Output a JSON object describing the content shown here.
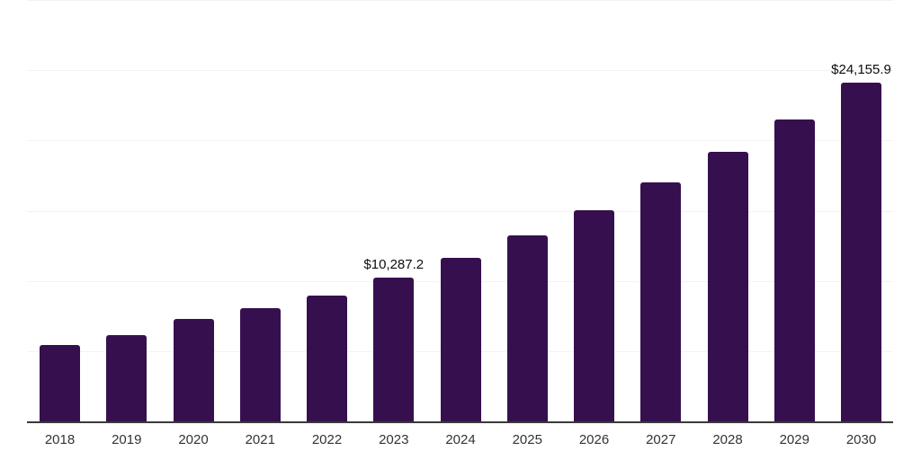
{
  "chart_data": {
    "type": "bar",
    "title": "",
    "xlabel": "",
    "ylabel": "",
    "categories": [
      "2018",
      "2019",
      "2020",
      "2021",
      "2022",
      "2023",
      "2024",
      "2025",
      "2026",
      "2027",
      "2028",
      "2029",
      "2030"
    ],
    "values": [
      5500,
      6210,
      7380,
      8120,
      9020,
      10287.2,
      11720,
      13320,
      15100,
      17050,
      19240,
      21540,
      24155.9
    ],
    "data_labels": [
      "",
      "",
      "",
      "",
      "",
      "$10,287.2",
      "",
      "",
      "",
      "",
      "",
      "",
      "$24,155.9"
    ],
    "ylim": [
      0,
      30000
    ],
    "gridline_interval": 5000,
    "grid": "horizontal",
    "y_axis_tick_labels": "none",
    "legend": "none"
  },
  "style": {
    "bar_color": "#36104E",
    "grid_color": "#f2f2f2",
    "axis_color": "#3a3a3a",
    "data_label_color": "#0d0d0d",
    "tick_label_color": "#333333",
    "background_color": "#ffffff"
  }
}
